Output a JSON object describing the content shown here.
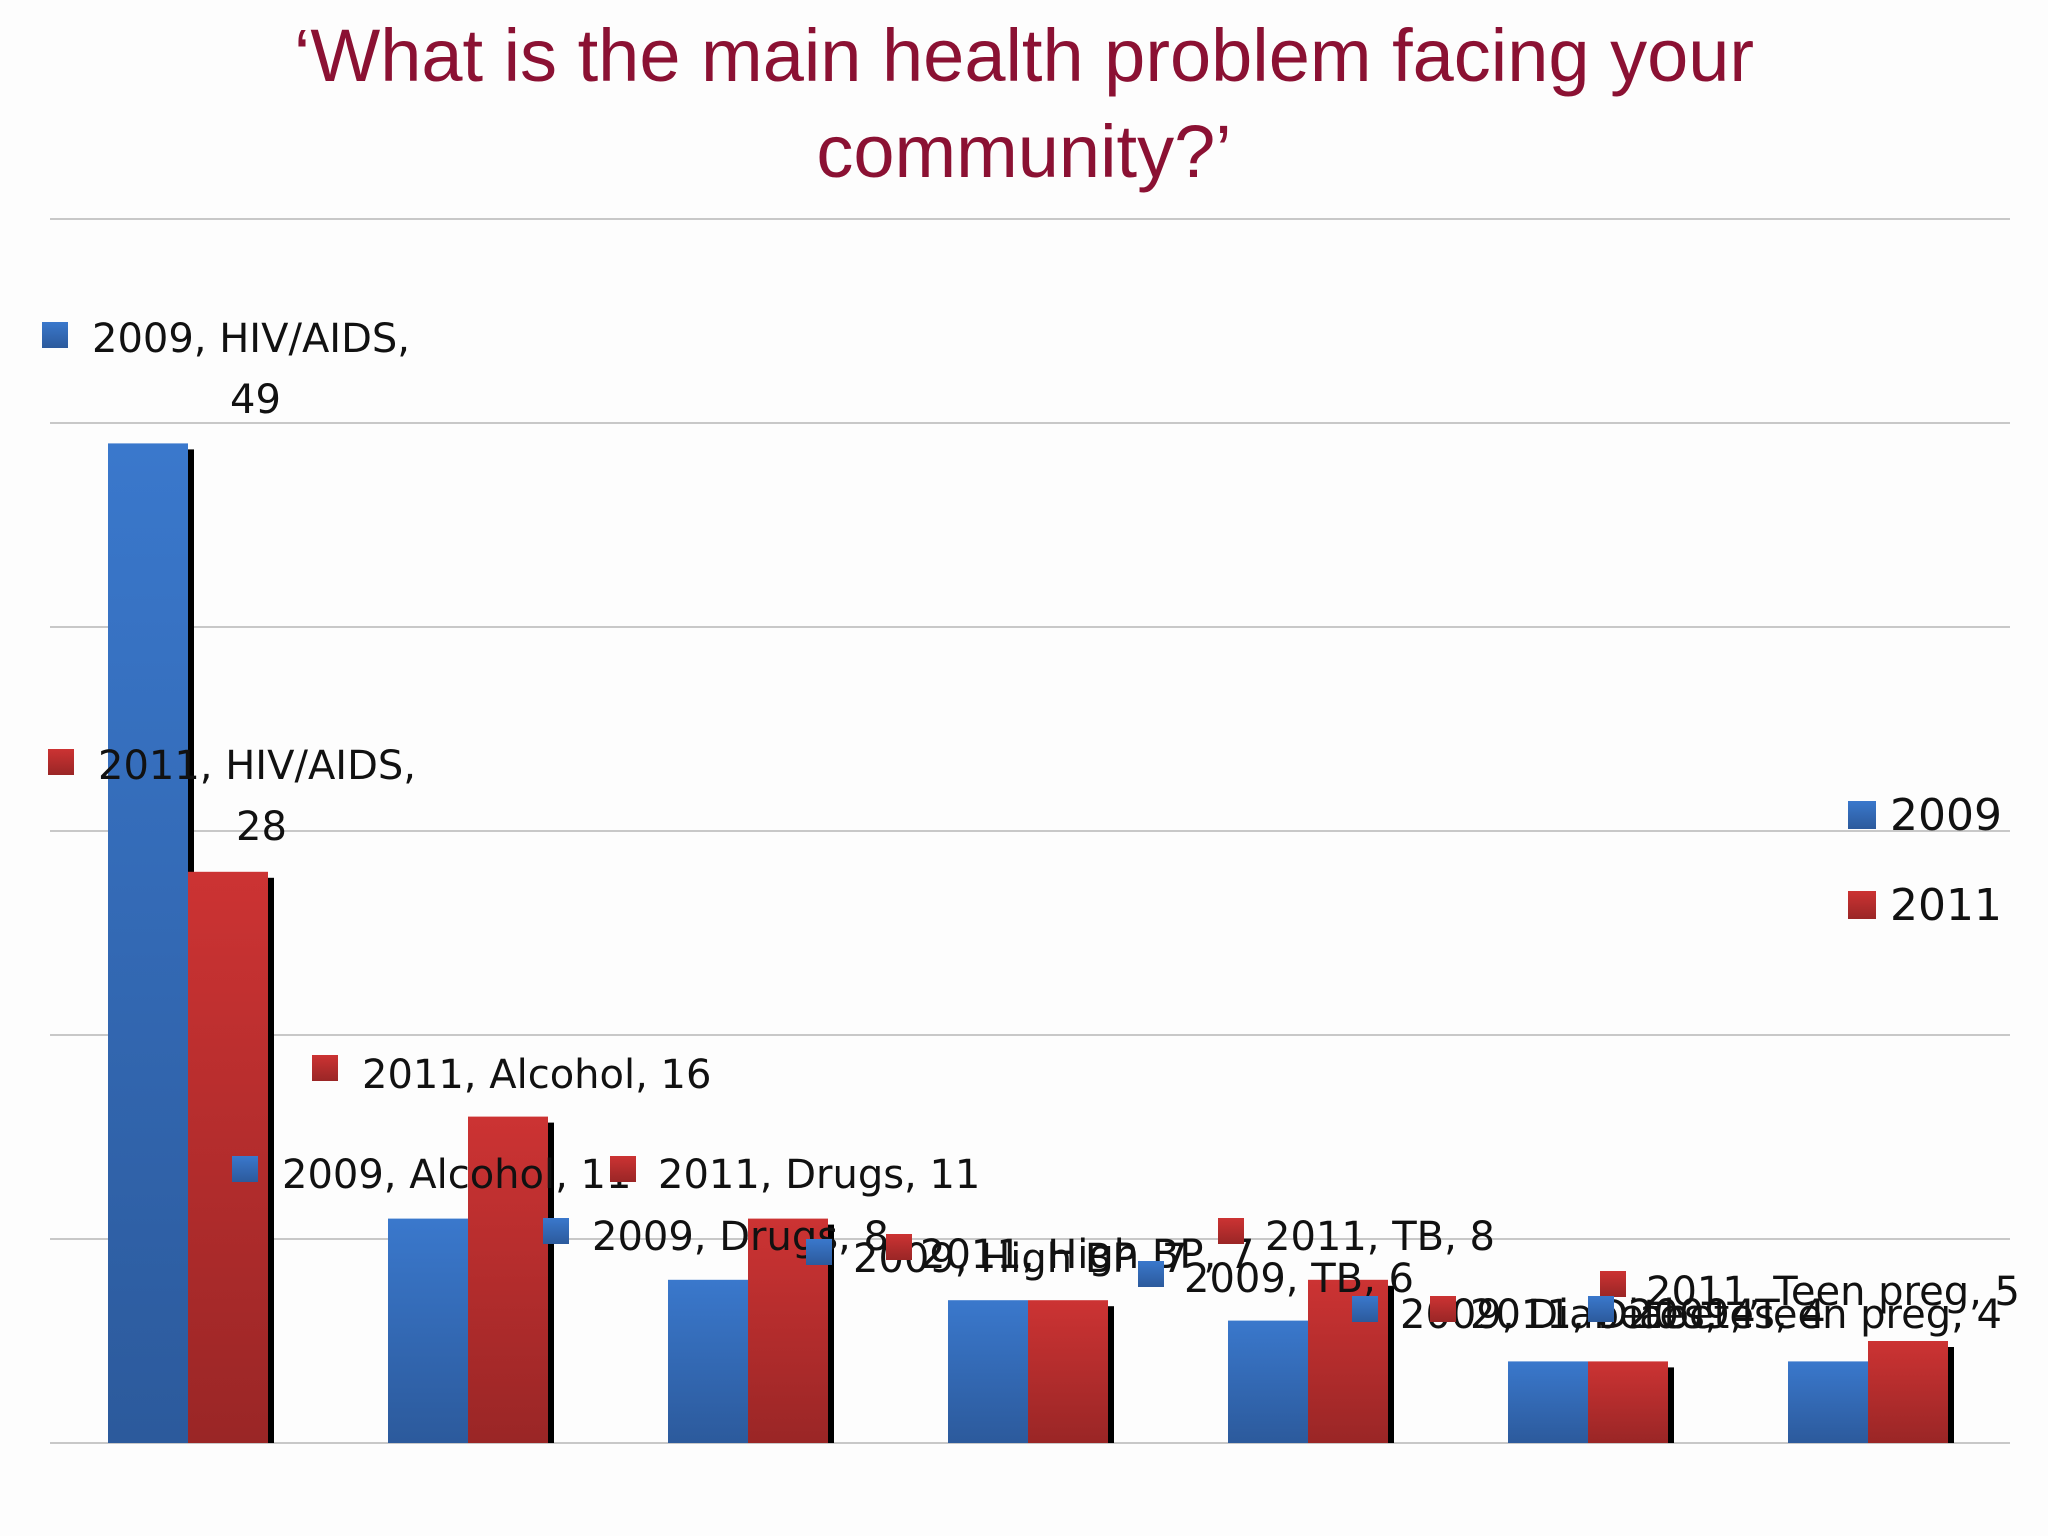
{
  "slide": {
    "title_line1": "‘What is the main health problem facing your",
    "title_line2": "community?’"
  },
  "colors": {
    "title": "#8b1133",
    "series_2009": "#3a78cc",
    "series_2011": "#cc3333",
    "grid": "#c8c8c8"
  },
  "chart_data": {
    "type": "bar",
    "title": "‘What is the main health problem facing your community?’",
    "categories": [
      "HIV/AIDS",
      "Alcohol",
      "Drugs",
      "High BP",
      "TB",
      "Diabetes",
      "Teen preg"
    ],
    "series": [
      {
        "name": "2009",
        "values": [
          49,
          11,
          8,
          7,
          6,
          4,
          4
        ]
      },
      {
        "name": "2011",
        "values": [
          28,
          16,
          11,
          7,
          8,
          4,
          5
        ]
      }
    ],
    "ylim": [
      0,
      60
    ],
    "y_gridlines": [
      0,
      10,
      20,
      30,
      40,
      50,
      60
    ],
    "grid": true,
    "legend": {
      "position": "right",
      "entries": [
        "2009",
        "2011"
      ]
    },
    "data_labels": [
      "2009, HIV/AIDS, 49",
      "2011, HIV/AIDS, 28",
      "2011, Alcohol, 16",
      "2009, Alcohol, 11",
      "2011, Drugs, 11",
      "2009, Drugs, 8",
      "2009, High BP, 7",
      "2011, High BP, 7",
      "2011, TB, 8",
      "2009, TB, 6",
      "2011, Teen preg, 5",
      "2009, Diabetes, 4",
      "2011, Diabetes, 4",
      "2009, Teen preg, 4"
    ]
  }
}
